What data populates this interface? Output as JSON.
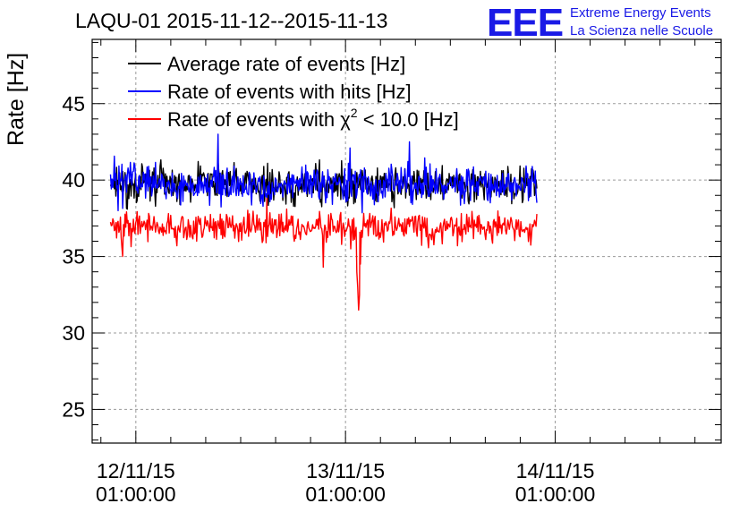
{
  "chart_data": {
    "type": "line",
    "title": "LAQU-01 2015-11-12--2015-11-13",
    "logo": {
      "mark": "EEE",
      "line1": "Extreme Energy Events",
      "line2": "La Scienza nelle Scuole"
    },
    "ylabel": "Rate [Hz]",
    "xlabel": "",
    "ylim": [
      22.8,
      49.2
    ],
    "y_ticks": [
      "25",
      "30",
      "35",
      "40",
      "45"
    ],
    "x_unit": "hours",
    "xlim": [
      -5.0,
      67.0
    ],
    "x_ticks": [
      {
        "date": "12/11/15",
        "time": "01:00:00"
      },
      {
        "date": "13/11/15",
        "time": "01:00:00"
      },
      {
        "date": "14/11/15",
        "time": "01:00:00"
      }
    ],
    "x_tick_hours": [
      0,
      24,
      48
    ],
    "grid": true,
    "legend_position": "top-left",
    "series": [
      {
        "name": "Average rate of events [Hz]",
        "color": "#000000",
        "x_range": [
          -2.9,
          45.9
        ],
        "mean": 39.7,
        "spread": 1.0,
        "values": []
      },
      {
        "name": "Rate of events with hits [Hz]",
        "color": "#0000ff",
        "x_range": [
          -2.9,
          45.9
        ],
        "mean": 39.7,
        "spread": 1.0,
        "spikes": [
          [
            9.4,
            43.0
          ],
          [
            24.5,
            42.1
          ],
          [
            31.3,
            42.5
          ],
          [
            -2.0,
            38.0
          ]
        ],
        "values": []
      },
      {
        "name_prefix": "Rate of events with ",
        "name_symbol": "χ",
        "name_sup": "2",
        "name_suffix": " < 10.0 [Hz]",
        "color": "#ff0000",
        "x_range": [
          -2.9,
          45.9
        ],
        "mean": 36.9,
        "spread": 0.85,
        "spikes": [
          [
            21.5,
            34.3
          ],
          [
            24.6,
            35.5
          ],
          [
            -1.5,
            35.0
          ],
          [
            15.0,
            38.8
          ]
        ],
        "dip": [
          [
            25.3,
            34.0
          ],
          [
            25.4,
            33.0
          ],
          [
            25.5,
            31.5
          ],
          [
            25.6,
            32.5
          ],
          [
            25.7,
            34.5
          ]
        ],
        "values": []
      }
    ]
  }
}
